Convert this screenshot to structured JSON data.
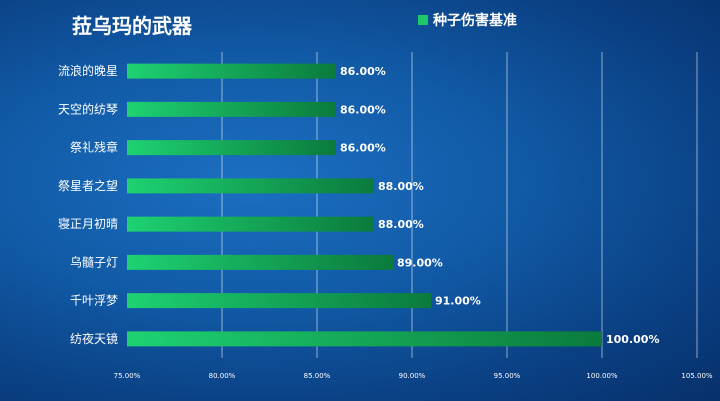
{
  "chart_data": {
    "type": "bar",
    "orientation": "horizontal",
    "title": "菈乌玛的武器",
    "legend_position": "top-right",
    "grid": true,
    "categories": [
      "流浪的晚星",
      "天空的纺琴",
      "祭礼残章",
      "祭星者之望",
      "寝正月初晴",
      "乌髓子灯",
      "千叶浮梦",
      "纺夜天镜"
    ],
    "series": [
      {
        "name": "种子伤害基准",
        "values": [
          86,
          86,
          86,
          88,
          88,
          89,
          91,
          100
        ],
        "value_labels": [
          "86.00%",
          "86.00%",
          "86.00%",
          "88.00%",
          "88.00%",
          "89.00%",
          "91.00%",
          "100.00%"
        ]
      }
    ],
    "xlim": [
      75,
      105
    ],
    "x_ticks": [
      75,
      80,
      85,
      90,
      95,
      100,
      105
    ],
    "x_tick_labels": [
      "75.00%",
      "80.00%",
      "85.00%",
      "90.00%",
      "95.00%",
      "100.00%",
      "105.00%"
    ],
    "xlabel": "",
    "ylabel": "",
    "colors": {
      "bar_start": "#1ed272",
      "bar_end": "#0b7a3c",
      "legend_swatch": "#1ec86a"
    }
  }
}
